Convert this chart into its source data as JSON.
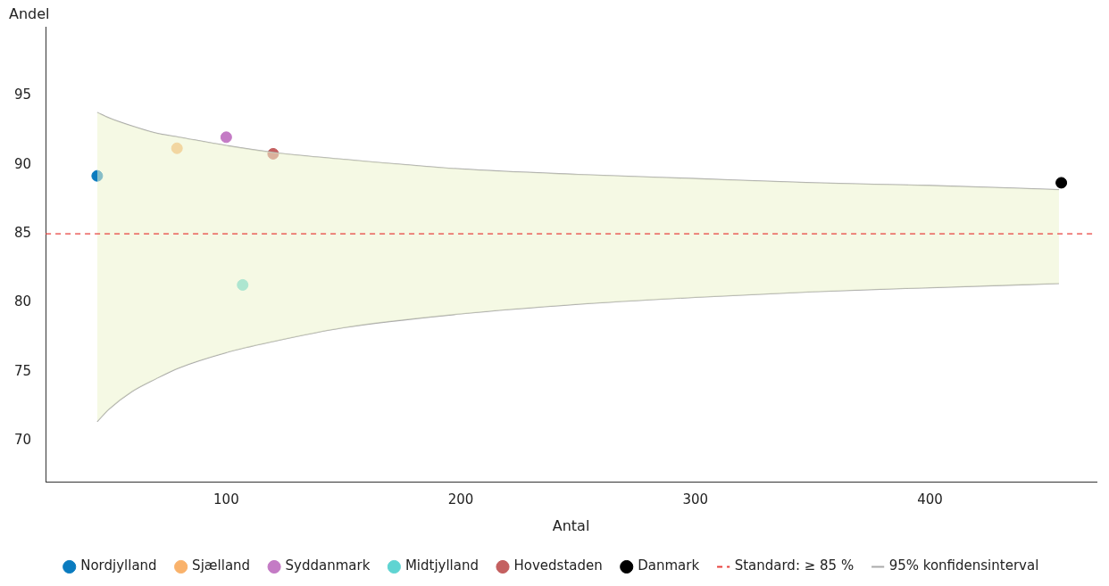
{
  "chart_data": {
    "type": "scatter",
    "xlabel": "Antal",
    "ylabel": "Andel",
    "xlim": [
      23,
      471
    ],
    "ylim": [
      67,
      100
    ],
    "xticks": [
      100,
      200,
      300,
      400
    ],
    "yticks": [
      70,
      75,
      80,
      85,
      90,
      95
    ],
    "grid": false,
    "legend": "bottom",
    "marker": "circle",
    "series": [
      {
        "name": "95% konfidensinterval",
        "type": "line",
        "color": "#aaaaaa",
        "marker": "none",
        "x": [
          45,
          50,
          60,
          70,
          80,
          100,
          120,
          150,
          200,
          250,
          300,
          350,
          400,
          455
        ],
        "values": [
          93.8,
          93.4,
          92.8,
          92.3,
          92.0,
          91.4,
          90.9,
          90.4,
          89.7,
          89.3,
          89.0,
          88.7,
          88.5,
          88.2
        ],
        "lower": [
          71.4,
          72.3,
          73.6,
          74.5,
          75.3,
          76.4,
          77.2,
          78.2,
          79.2,
          79.9,
          80.4,
          80.8,
          81.1,
          81.4
        ],
        "upper": [
          93.8,
          93.4,
          92.8,
          92.3,
          92.0,
          91.4,
          90.9,
          90.4,
          89.7,
          89.3,
          89.0,
          88.7,
          88.5,
          88.2
        ]
      },
      {
        "type": "line",
        "color": "#aaaaaa",
        "marker": "none",
        "x": [
          45,
          50,
          60,
          70,
          80,
          100,
          120,
          150,
          200,
          250,
          300,
          350,
          400,
          455
        ],
        "values": [
          71.4,
          72.3,
          73.6,
          74.5,
          75.3,
          76.4,
          77.2,
          78.2,
          79.2,
          79.9,
          80.4,
          80.8,
          81.1,
          81.4
        ]
      },
      {
        "name": "Nordjylland",
        "color": "#0a7bbf",
        "x": [
          45
        ],
        "values": [
          89.2
        ]
      },
      {
        "name": "Sjælland",
        "color": "#f9b26b",
        "x": [
          79
        ],
        "values": [
          91.2
        ]
      },
      {
        "name": "Syddanmark",
        "color": "#c47bc5",
        "x": [
          100
        ],
        "values": [
          92.0
        ]
      },
      {
        "name": "Midtjylland",
        "color": "#5fd4d2",
        "x": [
          107
        ],
        "values": [
          81.3
        ]
      },
      {
        "name": "Hovedstaden",
        "color": "#c46060",
        "x": [
          120
        ],
        "values": [
          90.8
        ]
      },
      {
        "name": "Danmark",
        "color": "#000000",
        "x": [
          456
        ],
        "values": [
          88.7
        ]
      }
    ],
    "ref_lines": [
      {
        "axis": "y",
        "value": 85,
        "label": "Standard: ≥ 85 %",
        "color": "#e8413c",
        "line_style": "dashed"
      }
    ]
  }
}
